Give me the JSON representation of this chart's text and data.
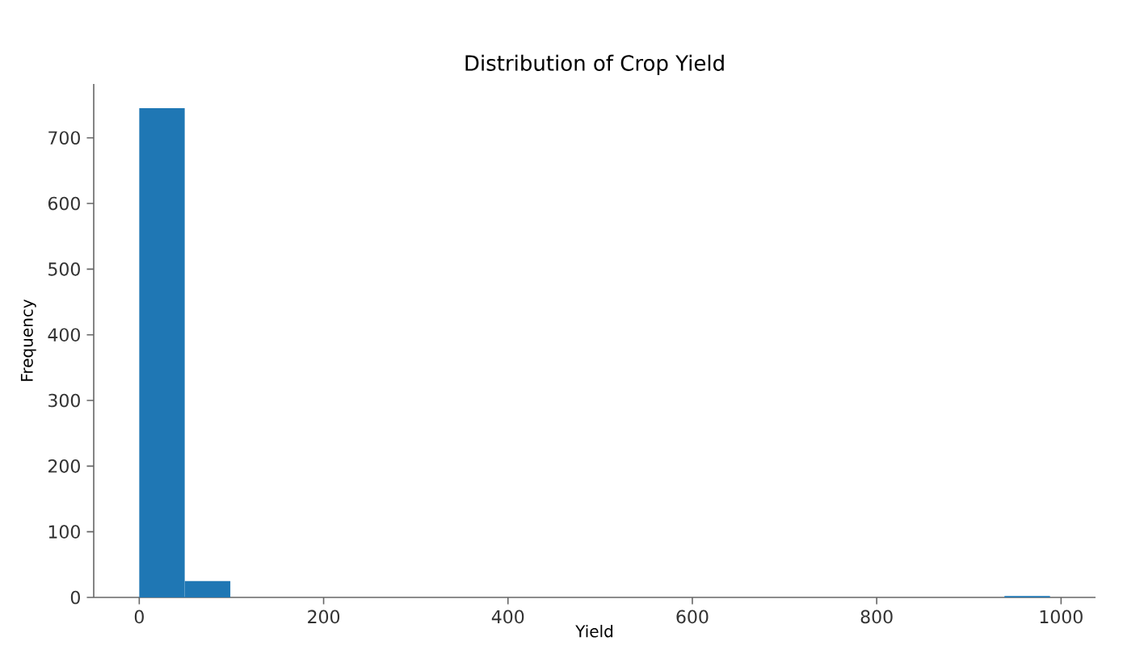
{
  "chart_data": {
    "type": "histogram",
    "title": "Distribution of Crop Yield",
    "xlabel": "Yield",
    "ylabel": "Frequency",
    "bins": [
      0,
      49.4,
      98.8,
      148.2,
      197.6,
      247,
      296.4,
      345.8,
      395.2,
      444.6,
      494,
      543.4,
      592.8,
      642.2,
      691.6,
      741,
      790.4,
      839.8,
      889.2,
      938.6,
      988
    ],
    "values": [
      745,
      25,
      0,
      0,
      0,
      0,
      0,
      0,
      0,
      0,
      0,
      0,
      0,
      0,
      0,
      0,
      0,
      0,
      0,
      2
    ],
    "color": "#1f77b4",
    "xlim": [
      -49.4,
      1037.4
    ],
    "ylim": [
      0,
      782
    ],
    "xticks": [
      0,
      200,
      400,
      600,
      800,
      1000
    ],
    "yticks": [
      0,
      100,
      200,
      300,
      400,
      500,
      600,
      700
    ],
    "grid": false
  }
}
